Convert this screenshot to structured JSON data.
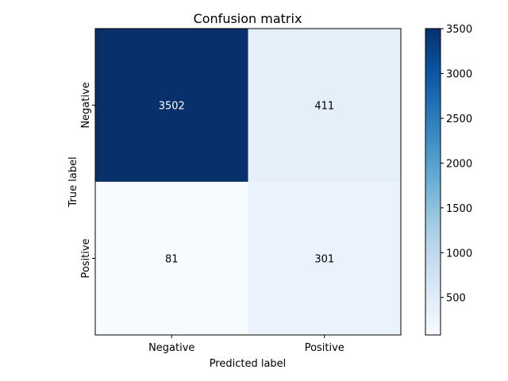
{
  "chart_data": {
    "type": "heatmap",
    "title": "Confusion matrix",
    "xlabel": "Predicted label",
    "ylabel": "True label",
    "x_categories": [
      "Negative",
      "Positive"
    ],
    "y_categories": [
      "Negative",
      "Positive"
    ],
    "values": [
      [
        3502,
        411
      ],
      [
        81,
        301
      ]
    ],
    "colormap": "Blues",
    "colorbar": {
      "range": [
        81,
        3502
      ],
      "ticks": [
        500,
        1000,
        1500,
        2000,
        2500,
        3000,
        3500
      ]
    },
    "text_color_dark_cells": "#ffffff",
    "text_color_light_cells": "#000000"
  }
}
